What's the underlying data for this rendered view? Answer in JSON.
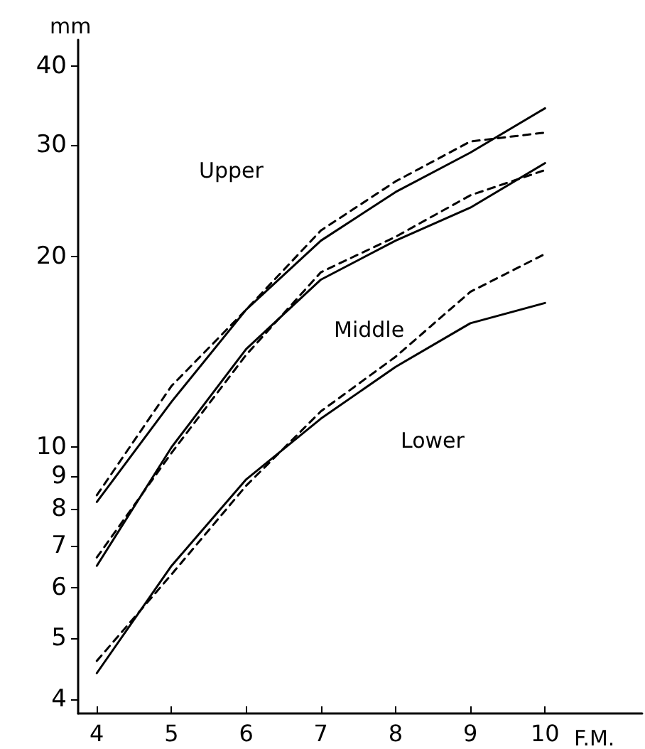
{
  "chart_data": {
    "type": "line",
    "xlabel": "F.M.",
    "ylabel": "mm",
    "log": "y",
    "grid": false,
    "marker": "none",
    "x": [
      4,
      5,
      6,
      7,
      8,
      9,
      10
    ],
    "xlim": [
      3.75,
      11.3
    ],
    "xticks": [
      4,
      5,
      6,
      7,
      8,
      9,
      10
    ],
    "ylim": [
      3.8,
      44
    ],
    "yticks": [
      4,
      5,
      6,
      7,
      8,
      9,
      10,
      20,
      30,
      40
    ],
    "series": [
      {
        "color": "#000000",
        "line_style": "solid",
        "values": [
          8.2,
          11.8,
          16.5,
          21.2,
          25.3,
          29.2,
          34.3
        ]
      },
      {
        "color": "#000000",
        "line_style": "dashed",
        "values": [
          8.4,
          12.5,
          16.5,
          22,
          26.3,
          30.4,
          31.4
        ]
      },
      {
        "color": "#000000",
        "line_style": "solid",
        "values": [
          6.5,
          10,
          14.3,
          18.4,
          21.2,
          23.9,
          28.1
        ]
      },
      {
        "color": "#000000",
        "line_style": "dashed",
        "values": [
          6.7,
          9.8,
          14,
          18.9,
          21.5,
          25,
          27.4
        ]
      },
      {
        "color": "#000000",
        "line_style": "solid",
        "values": [
          4.4,
          6.5,
          8.9,
          11.1,
          13.4,
          15.7,
          16.9
        ]
      },
      {
        "color": "#000000",
        "line_style": "dashed",
        "values": [
          4.6,
          6.3,
          8.7,
          11.4,
          13.9,
          17.6,
          20.2
        ]
      }
    ],
    "annotations": [
      "Upper",
      "Middle",
      "Lower"
    ]
  }
}
